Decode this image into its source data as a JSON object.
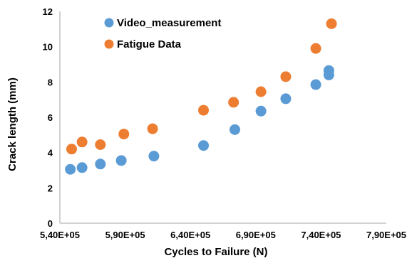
{
  "chart_data": {
    "type": "scatter",
    "title": "",
    "xlabel": "Cycles to Failure (N)",
    "ylabel": "Crack length (mm)",
    "xlim": [
      540000,
      790000
    ],
    "ylim": [
      0,
      12
    ],
    "x_ticks": [
      540000,
      590000,
      640000,
      690000,
      740000,
      790000
    ],
    "x_tick_labels": [
      "5,40E+05",
      "5,90E+05",
      "6,40E+05",
      "6,90E+05",
      "7,40E+05",
      "7,90E+05"
    ],
    "y_ticks": [
      0,
      2,
      4,
      6,
      8,
      10,
      12
    ],
    "y_tick_labels": [
      "0",
      "2",
      "4",
      "6",
      "8",
      "10",
      "12"
    ],
    "grid": false,
    "legend_position": "top-left",
    "series": [
      {
        "name": "Video_measurement",
        "color": "#5b9bd5",
        "points": [
          {
            "x": 548000,
            "y": 3.05
          },
          {
            "x": 557000,
            "y": 3.15
          },
          {
            "x": 571000,
            "y": 3.35
          },
          {
            "x": 587000,
            "y": 3.55
          },
          {
            "x": 612000,
            "y": 3.8
          },
          {
            "x": 650000,
            "y": 4.4
          },
          {
            "x": 674000,
            "y": 5.3
          },
          {
            "x": 694000,
            "y": 6.35
          },
          {
            "x": 713000,
            "y": 7.05
          },
          {
            "x": 736000,
            "y": 7.85
          },
          {
            "x": 746000,
            "y": 8.4
          },
          {
            "x": 746000,
            "y": 8.65
          }
        ]
      },
      {
        "name": "Fatigue Data",
        "color": "#ed7d31",
        "points": [
          {
            "x": 549000,
            "y": 4.2
          },
          {
            "x": 557000,
            "y": 4.6
          },
          {
            "x": 571000,
            "y": 4.45
          },
          {
            "x": 589000,
            "y": 5.05
          },
          {
            "x": 611000,
            "y": 5.35
          },
          {
            "x": 650000,
            "y": 6.4
          },
          {
            "x": 673000,
            "y": 6.85
          },
          {
            "x": 694000,
            "y": 7.45
          },
          {
            "x": 713000,
            "y": 8.3
          },
          {
            "x": 736000,
            "y": 9.9
          },
          {
            "x": 748000,
            "y": 11.3
          }
        ]
      }
    ]
  }
}
